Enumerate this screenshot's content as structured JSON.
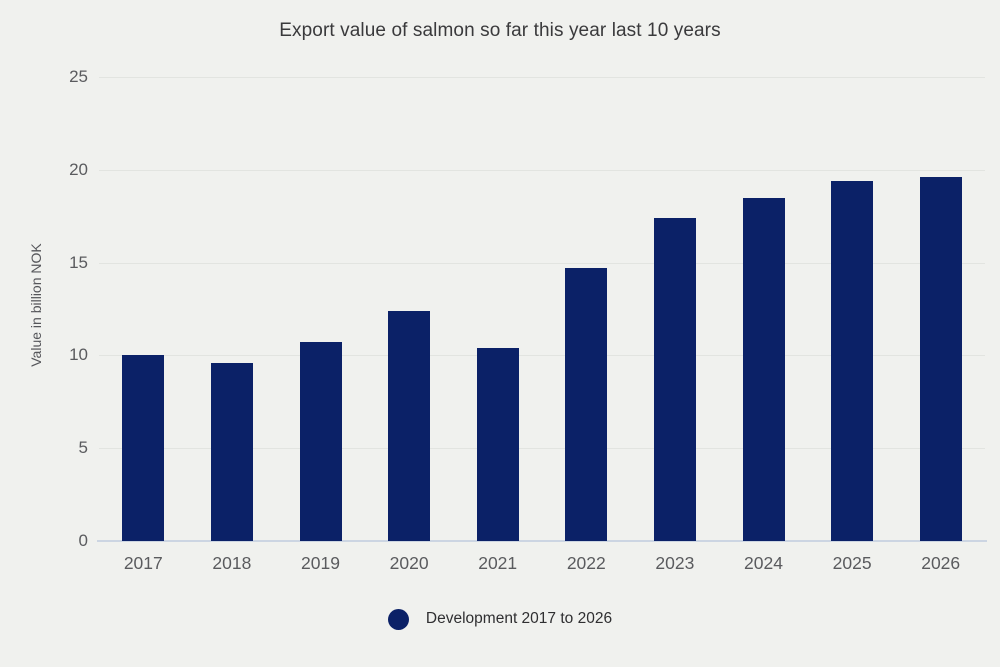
{
  "title": "Export value of salmon so far this year last 10 years",
  "legend": {
    "label": "Development 2017 to 2026"
  },
  "colors": {
    "background": "#f0f1ee",
    "bar": "#0b2167",
    "gridline": "#e2e4e0",
    "baseline": "#ccd5e2",
    "tick_text": "#5a5b5e",
    "title_text": "#3a3a3c"
  },
  "chart_data": {
    "type": "bar",
    "title": "Export value of salmon so far this year last 10 years",
    "categories": [
      "2017",
      "2018",
      "2019",
      "2020",
      "2021",
      "2022",
      "2023",
      "2024",
      "2025",
      "2026"
    ],
    "values": [
      10.0,
      9.6,
      10.7,
      12.4,
      10.4,
      14.7,
      17.4,
      18.5,
      19.4,
      19.6
    ],
    "series_name": "Development 2017 to 2026",
    "xlabel": "",
    "ylabel": "Value in billion NOK",
    "ylim": [
      0,
      25
    ],
    "yticks": [
      0,
      5,
      10,
      15,
      20,
      25
    ],
    "grid": true,
    "legend_position": "bottom",
    "bar_color": "#0b2167"
  }
}
